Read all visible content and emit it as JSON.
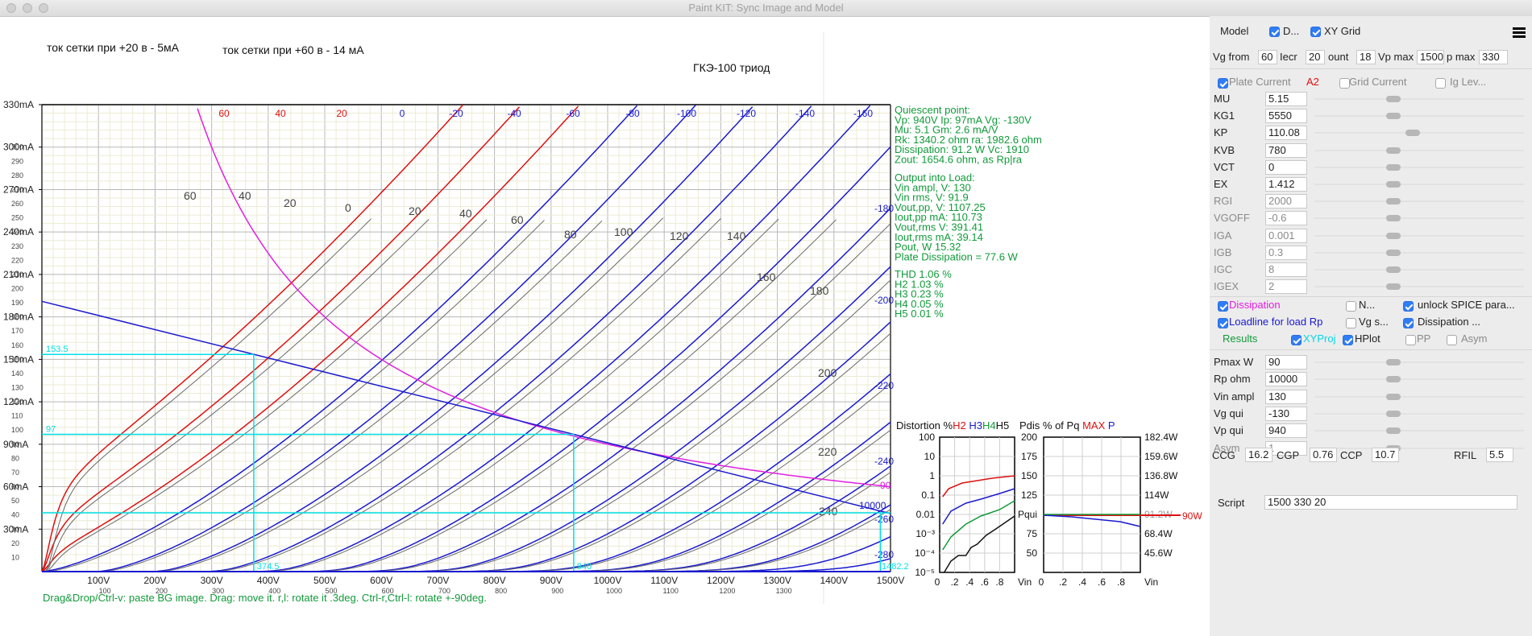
{
  "window": {
    "title": "Paint KIT: Sync Image and Model"
  },
  "plot": {
    "notes": [
      {
        "text": "ток сетки при +20 в - 5мА",
        "x": 58,
        "y": 64
      },
      {
        "text": "ток сетки при +60 в - 14 мА",
        "x": 276,
        "y": 67
      },
      {
        "text": "ГКЭ-100   триод",
        "x": 860,
        "y": 89
      }
    ],
    "y_ticks": [
      "330mA",
      "300mA",
      "270mA",
      "240mA",
      "210mA",
      "180mA",
      "150mA",
      "120mA",
      "90mA",
      "60mA",
      "30mA"
    ],
    "y_ticks_small": [
      "10",
      "20",
      "30",
      "40",
      "50",
      "60",
      "70",
      "80",
      "90",
      "100",
      "110",
      "120",
      "130",
      "140",
      "150",
      "160",
      "170",
      "180",
      "190",
      "200",
      "210",
      "220",
      "230",
      "240",
      "250",
      "260",
      "270",
      "280",
      "290",
      "300"
    ],
    "x_ticks": [
      "100V",
      "200V",
      "300V",
      "400V",
      "500V",
      "600V",
      "700V",
      "800V",
      "900V",
      "1000V",
      "1100V",
      "1200V",
      "1300V",
      "1400V",
      "1500V"
    ],
    "x_ticks_small": [
      "100",
      "200",
      "300",
      "400",
      "500",
      "600",
      "700",
      "800",
      "900",
      "1000",
      "1100",
      "1200",
      "1300"
    ],
    "grid_labels_top": [
      {
        "v": "60",
        "c": "#dd1111"
      },
      {
        "v": "40",
        "c": "#dd1111"
      },
      {
        "v": "20",
        "c": "#dd1111"
      },
      {
        "v": "0",
        "c": "#1a1ad0"
      },
      {
        "v": "-20",
        "c": "#1a1ad0"
      },
      {
        "v": "-40",
        "c": "#1a1ad0"
      },
      {
        "v": "-60",
        "c": "#1a1ad0"
      },
      {
        "v": "-80",
        "c": "#1a1ad0"
      },
      {
        "v": "-100",
        "c": "#1a1ad0"
      },
      {
        "v": "-120",
        "c": "#1a1ad0"
      },
      {
        "v": "-140",
        "c": "#1a1ad0"
      },
      {
        "v": "-160",
        "c": "#1a1ad0"
      }
    ],
    "grid_labels_right": [
      "-180",
      "-200",
      "-220",
      "-240",
      "-260",
      "-280"
    ],
    "scan_labels": [
      "60",
      "40",
      "20",
      "0",
      "20",
      "40",
      "60",
      "80",
      "100",
      "120",
      "140",
      "160",
      "180",
      "200",
      "220",
      "240"
    ],
    "cyan_labels": [
      "153.5",
      "97",
      "374.5",
      "940",
      "1482.2"
    ],
    "loadline_labels": {
      "pmax": "90",
      "rp": "10000"
    },
    "quiescent": [
      "Quiescent point:",
      "Vp: 940V  Ip: 97mA  Vg: -130V",
      "Mu: 5.1 Gm: 2.6 mA/V",
      "Rk: 1340.2 ohm ra: 1982.6 ohm",
      "Dissipation: 91.2 W Vc: 1910",
      "Zout: 1654.6 ohm, as Rp|ra"
    ],
    "output": [
      "Output into Load:",
      "Vin ampl, V: 130",
      "Vin rms, V: 91.9",
      "Vout,pp,   V: 1107.25",
      "Iout,pp   mA: 110.73",
      "Vout,rms    V: 391.41",
      "Iout,rms  mA: 39.14",
      "Pout, W       15.32",
      "Plate Dissipation = 77.6 W"
    ],
    "thd": [
      "THD 1.06 %",
      "  H2 1.03 %",
      "  H3 0.23 %",
      "  H4 0.05 %",
      "  H5 0.01 %"
    ],
    "status": "Drag&Drop/Ctrl-v: paste BG image. Drag: move it. r,l: rotate it .3deg. Ctrl-r,Ctrl-l: rotate +-90deg."
  },
  "distortion_chart": {
    "title_prefix": "Distortion %",
    "h2": "H2",
    "h3": "H3",
    "h4": "H4",
    "h5": "H5",
    "y_ticks": [
      "100",
      "10",
      "1",
      "0.1",
      "0.01",
      "10⁻³",
      "10⁻⁴",
      "10⁻⁵"
    ],
    "x_ticks": [
      "0",
      ".2",
      ".4",
      ".6",
      ".8"
    ],
    "x_label": "Vin"
  },
  "pdis_chart": {
    "title_prefix": "Pdis % of Pq",
    "max": "MAX",
    "p": "P",
    "y_ticks": [
      "200",
      "175",
      "150",
      "125",
      "Pqui",
      "75",
      "50"
    ],
    "right_ticks": [
      "182.4W",
      "159.6W",
      "136.8W",
      "114W",
      "91.2W",
      "68.4W",
      "45.6W"
    ],
    "line_label": "90W",
    "x_ticks": [
      "0",
      ".2",
      ".4",
      ".6",
      ".8"
    ],
    "x_label": "Vin"
  },
  "panel": {
    "model_label": "Model",
    "cb_d": "D...",
    "cb_xygrid": "XY Grid",
    "vg_from_label": "Vg from",
    "vg_from": "60",
    "incr_label": "Iecr",
    "incr": "20",
    "count_label": "ount",
    "count": "18",
    "vp_max_label": "Vp max",
    "vp_max": "1500",
    "ip_max_label": "p max",
    "ip_max": "330",
    "plate_current": "Plate Current",
    "a2": "A2",
    "grid_current": "Grid Current",
    "ig_lev": "Ig Lev...",
    "params": [
      {
        "name": "MU",
        "value": "5.15",
        "knob": 89,
        "dim": false
      },
      {
        "name": "KG1",
        "value": "5550",
        "knob": 89,
        "dim": false
      },
      {
        "name": "KP",
        "value": "110.08",
        "knob": 113,
        "dim": false
      },
      {
        "name": "KVB",
        "value": "780",
        "knob": 89,
        "dim": false
      },
      {
        "name": "VCT",
        "value": "0",
        "knob": 89,
        "dim": false
      },
      {
        "name": "EX",
        "value": "1.412",
        "knob": 89,
        "dim": false
      },
      {
        "name": "RGI",
        "value": "2000",
        "knob": 89,
        "dim": true
      },
      {
        "name": "VGOFF",
        "value": "-0.6",
        "knob": 89,
        "dim": true
      },
      {
        "name": "IGA",
        "value": "0.001",
        "knob": 89,
        "dim": true
      },
      {
        "name": "IGB",
        "value": "0.3",
        "knob": 89,
        "dim": true
      },
      {
        "name": "IGC",
        "value": "8",
        "knob": 89,
        "dim": true
      },
      {
        "name": "IGEX",
        "value": "2",
        "knob": 89,
        "dim": true
      }
    ],
    "dissipation": "Dissipation",
    "n_label": "N...",
    "unlock_spice": "unlock SPICE para...",
    "loadline": "Loadline for load Rp",
    "vg_s": "Vg s...",
    "dissipation2": "Dissipation ...",
    "results": "Results",
    "xyproj": "XYProj",
    "hplot": "HPlot",
    "pp": "PP",
    "asym_cb": "Asym",
    "settings": [
      {
        "name": "Pmax W",
        "value": "90",
        "dim": false
      },
      {
        "name": "Rp ohm",
        "value": "10000",
        "dim": false
      },
      {
        "name": "Vin ampl",
        "value": "130",
        "dim": false
      },
      {
        "name": "Vg qui",
        "value": "-130",
        "dim": false
      },
      {
        "name": "Vp qui",
        "value": "940",
        "dim": false
      },
      {
        "name": "Asym",
        "value": "1",
        "dim": true
      }
    ],
    "ccg_label": "CCG",
    "ccg": "16.2",
    "cgp_label": "CGP",
    "cgp": "0.76",
    "ccp_label": "CCP",
    "ccp": "10.7",
    "rfil_label": "RFIL",
    "rfil": "5.5",
    "script_label": "Script",
    "script": "1500 330 20"
  },
  "colors": {
    "red": "#dd1111",
    "blue": "#1a1ad0",
    "magenta": "#e020e0",
    "cyan": "#00e0e8",
    "green": "#119a3a",
    "accent": "#2f7cf6"
  }
}
